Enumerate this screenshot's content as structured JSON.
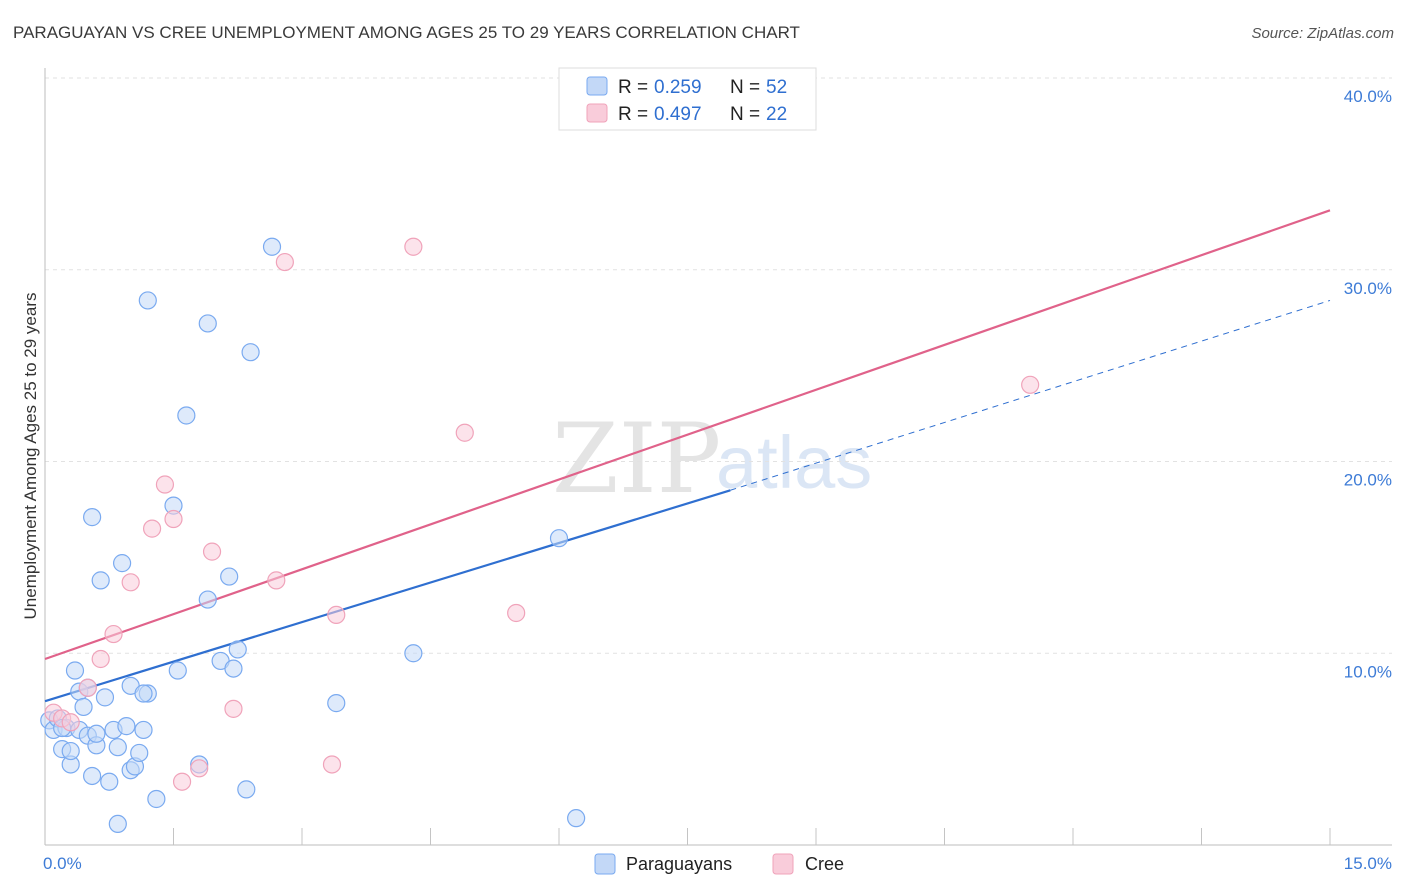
{
  "chart_data": {
    "type": "scatter",
    "title": "PARAGUAYAN VS CREE UNEMPLOYMENT AMONG AGES 25 TO 29 YEARS CORRELATION CHART",
    "source": "Source: ZipAtlas.com",
    "xlabel": "",
    "ylabel": "Unemployment Among Ages 25 to 29 years",
    "xlim": [
      0,
      15
    ],
    "ylim": [
      0,
      40
    ],
    "x_tick_labels": [
      "0.0%",
      "15.0%"
    ],
    "y_ticks": [
      10,
      20,
      30,
      40
    ],
    "y_tick_labels": [
      "10.0%",
      "20.0%",
      "30.0%",
      "40.0%"
    ],
    "grid": true,
    "legend_position": "top-center",
    "watermark": {
      "zip": "ZIP",
      "atlas": "atlas"
    },
    "legend": [
      {
        "r_label": "R = ",
        "r_value": "0.259",
        "n_label": "N = ",
        "n_value": "52"
      },
      {
        "r_label": "R = ",
        "r_value": "0.497",
        "n_label": "N = ",
        "n_value": "22"
      }
    ],
    "series": [
      {
        "name": "Paraguayans",
        "color": "#7aaaf0",
        "fill": "#c3d8f7",
        "line_color": "#2f6fd0",
        "trend": {
          "x0": 0,
          "y0": 7.5,
          "x1": 8.0,
          "y1": 18.5,
          "x_dash_end": 15,
          "y_dash_end": 28.4
        },
        "points": [
          [
            0.05,
            6.5
          ],
          [
            0.1,
            6.0
          ],
          [
            0.15,
            6.6
          ],
          [
            0.2,
            5.0
          ],
          [
            0.25,
            6.1
          ],
          [
            0.3,
            4.2
          ],
          [
            0.35,
            9.1
          ],
          [
            0.4,
            6.0
          ],
          [
            0.4,
            8.0
          ],
          [
            0.45,
            7.2
          ],
          [
            0.5,
            5.7
          ],
          [
            0.55,
            3.6
          ],
          [
            0.6,
            5.2
          ],
          [
            0.65,
            13.8
          ],
          [
            0.7,
            7.7
          ],
          [
            0.75,
            3.3
          ],
          [
            0.8,
            6.0
          ],
          [
            0.85,
            5.1
          ],
          [
            0.9,
            14.7
          ],
          [
            0.95,
            6.2
          ],
          [
            1.0,
            3.9
          ],
          [
            1.0,
            8.3
          ],
          [
            1.05,
            4.1
          ],
          [
            1.1,
            4.8
          ],
          [
            1.15,
            6.0
          ],
          [
            1.2,
            7.9
          ],
          [
            1.3,
            2.4
          ],
          [
            1.55,
            9.1
          ],
          [
            1.65,
            22.4
          ],
          [
            1.8,
            4.2
          ],
          [
            1.9,
            12.8
          ],
          [
            2.05,
            9.6
          ],
          [
            2.15,
            14.0
          ],
          [
            2.25,
            10.2
          ],
          [
            2.35,
            2.9
          ],
          [
            2.4,
            25.7
          ],
          [
            2.65,
            31.2
          ],
          [
            3.4,
            7.4
          ],
          [
            4.3,
            10.0
          ],
          [
            6.0,
            16.0
          ],
          [
            6.2,
            1.4
          ],
          [
            0.85,
            1.1
          ],
          [
            1.2,
            28.4
          ],
          [
            1.9,
            27.2
          ],
          [
            1.5,
            17.7
          ],
          [
            0.55,
            17.1
          ],
          [
            2.2,
            9.2
          ],
          [
            1.15,
            7.9
          ],
          [
            0.3,
            4.9
          ],
          [
            0.5,
            8.2
          ],
          [
            0.2,
            6.1
          ],
          [
            0.6,
            5.8
          ]
        ]
      },
      {
        "name": "Cree",
        "color": "#f0a3ba",
        "fill": "#f9ccda",
        "line_color": "#e0628a",
        "trend": {
          "x0": 0,
          "y0": 9.7,
          "x1": 15,
          "y1": 33.1
        },
        "points": [
          [
            0.1,
            6.9
          ],
          [
            0.2,
            6.6
          ],
          [
            0.3,
            6.4
          ],
          [
            0.5,
            8.2
          ],
          [
            0.65,
            9.7
          ],
          [
            0.8,
            11.0
          ],
          [
            1.0,
            13.7
          ],
          [
            1.25,
            16.5
          ],
          [
            1.4,
            18.8
          ],
          [
            1.5,
            17.0
          ],
          [
            1.6,
            3.3
          ],
          [
            1.8,
            4.0
          ],
          [
            1.95,
            15.3
          ],
          [
            2.2,
            7.1
          ],
          [
            2.7,
            13.8
          ],
          [
            2.8,
            30.4
          ],
          [
            3.35,
            4.2
          ],
          [
            3.4,
            12.0
          ],
          [
            4.3,
            31.2
          ],
          [
            4.9,
            21.5
          ],
          [
            5.5,
            12.1
          ],
          [
            11.5,
            24.0
          ]
        ]
      }
    ]
  }
}
